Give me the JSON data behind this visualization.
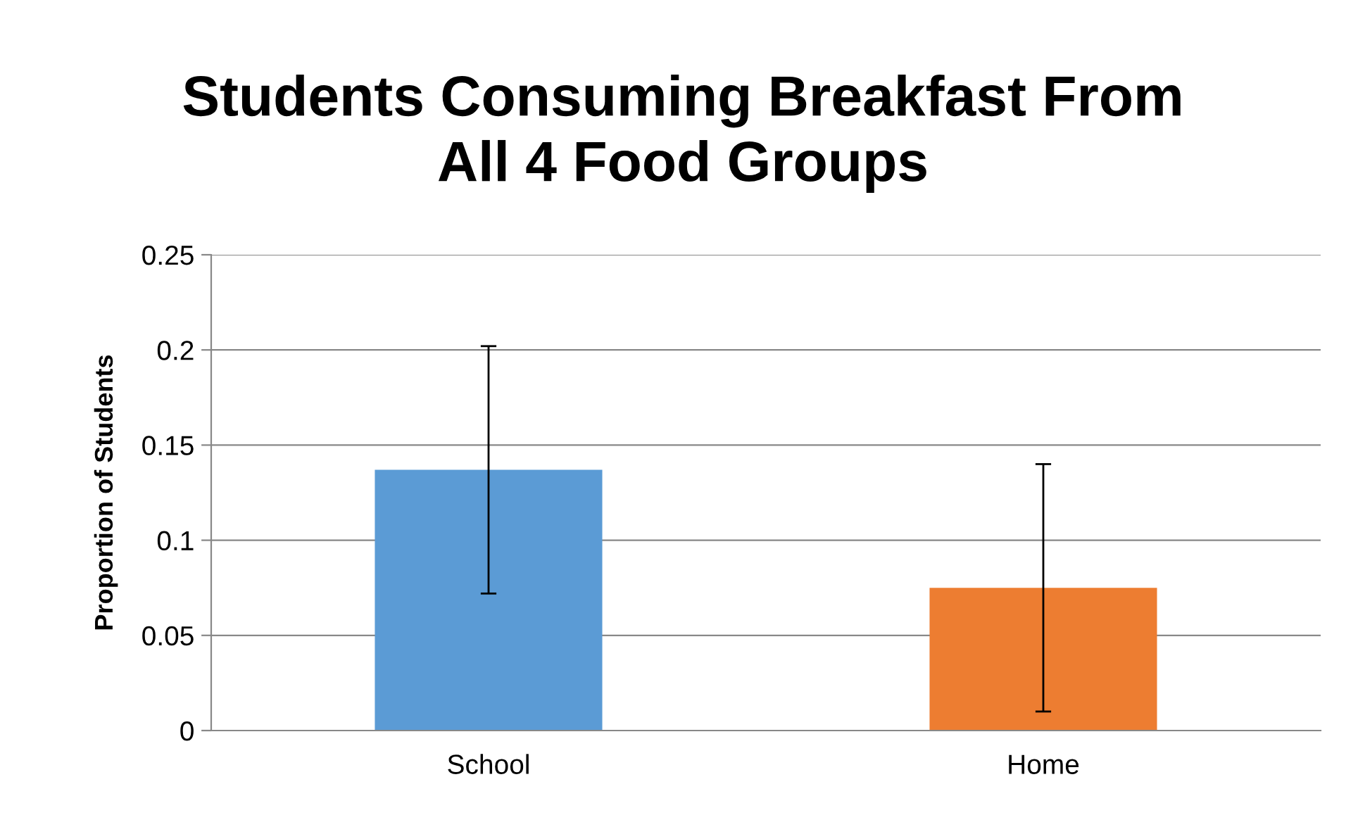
{
  "chart_data": {
    "type": "bar",
    "title": "Students Consuming Breakfast From\nAll 4 Food Groups",
    "ylabel": "Proportion of Students",
    "categories": [
      "School",
      "Home"
    ],
    "values": [
      0.137,
      0.075
    ],
    "colors": [
      "#5b9bd5",
      "#ed7d31"
    ],
    "errors": [
      0.065,
      0.065
    ],
    "ylim": [
      0,
      0.25
    ],
    "yticks": [
      0,
      0.05,
      0.1,
      0.15,
      0.2,
      0.25
    ],
    "grid": "y",
    "legend": false
  }
}
